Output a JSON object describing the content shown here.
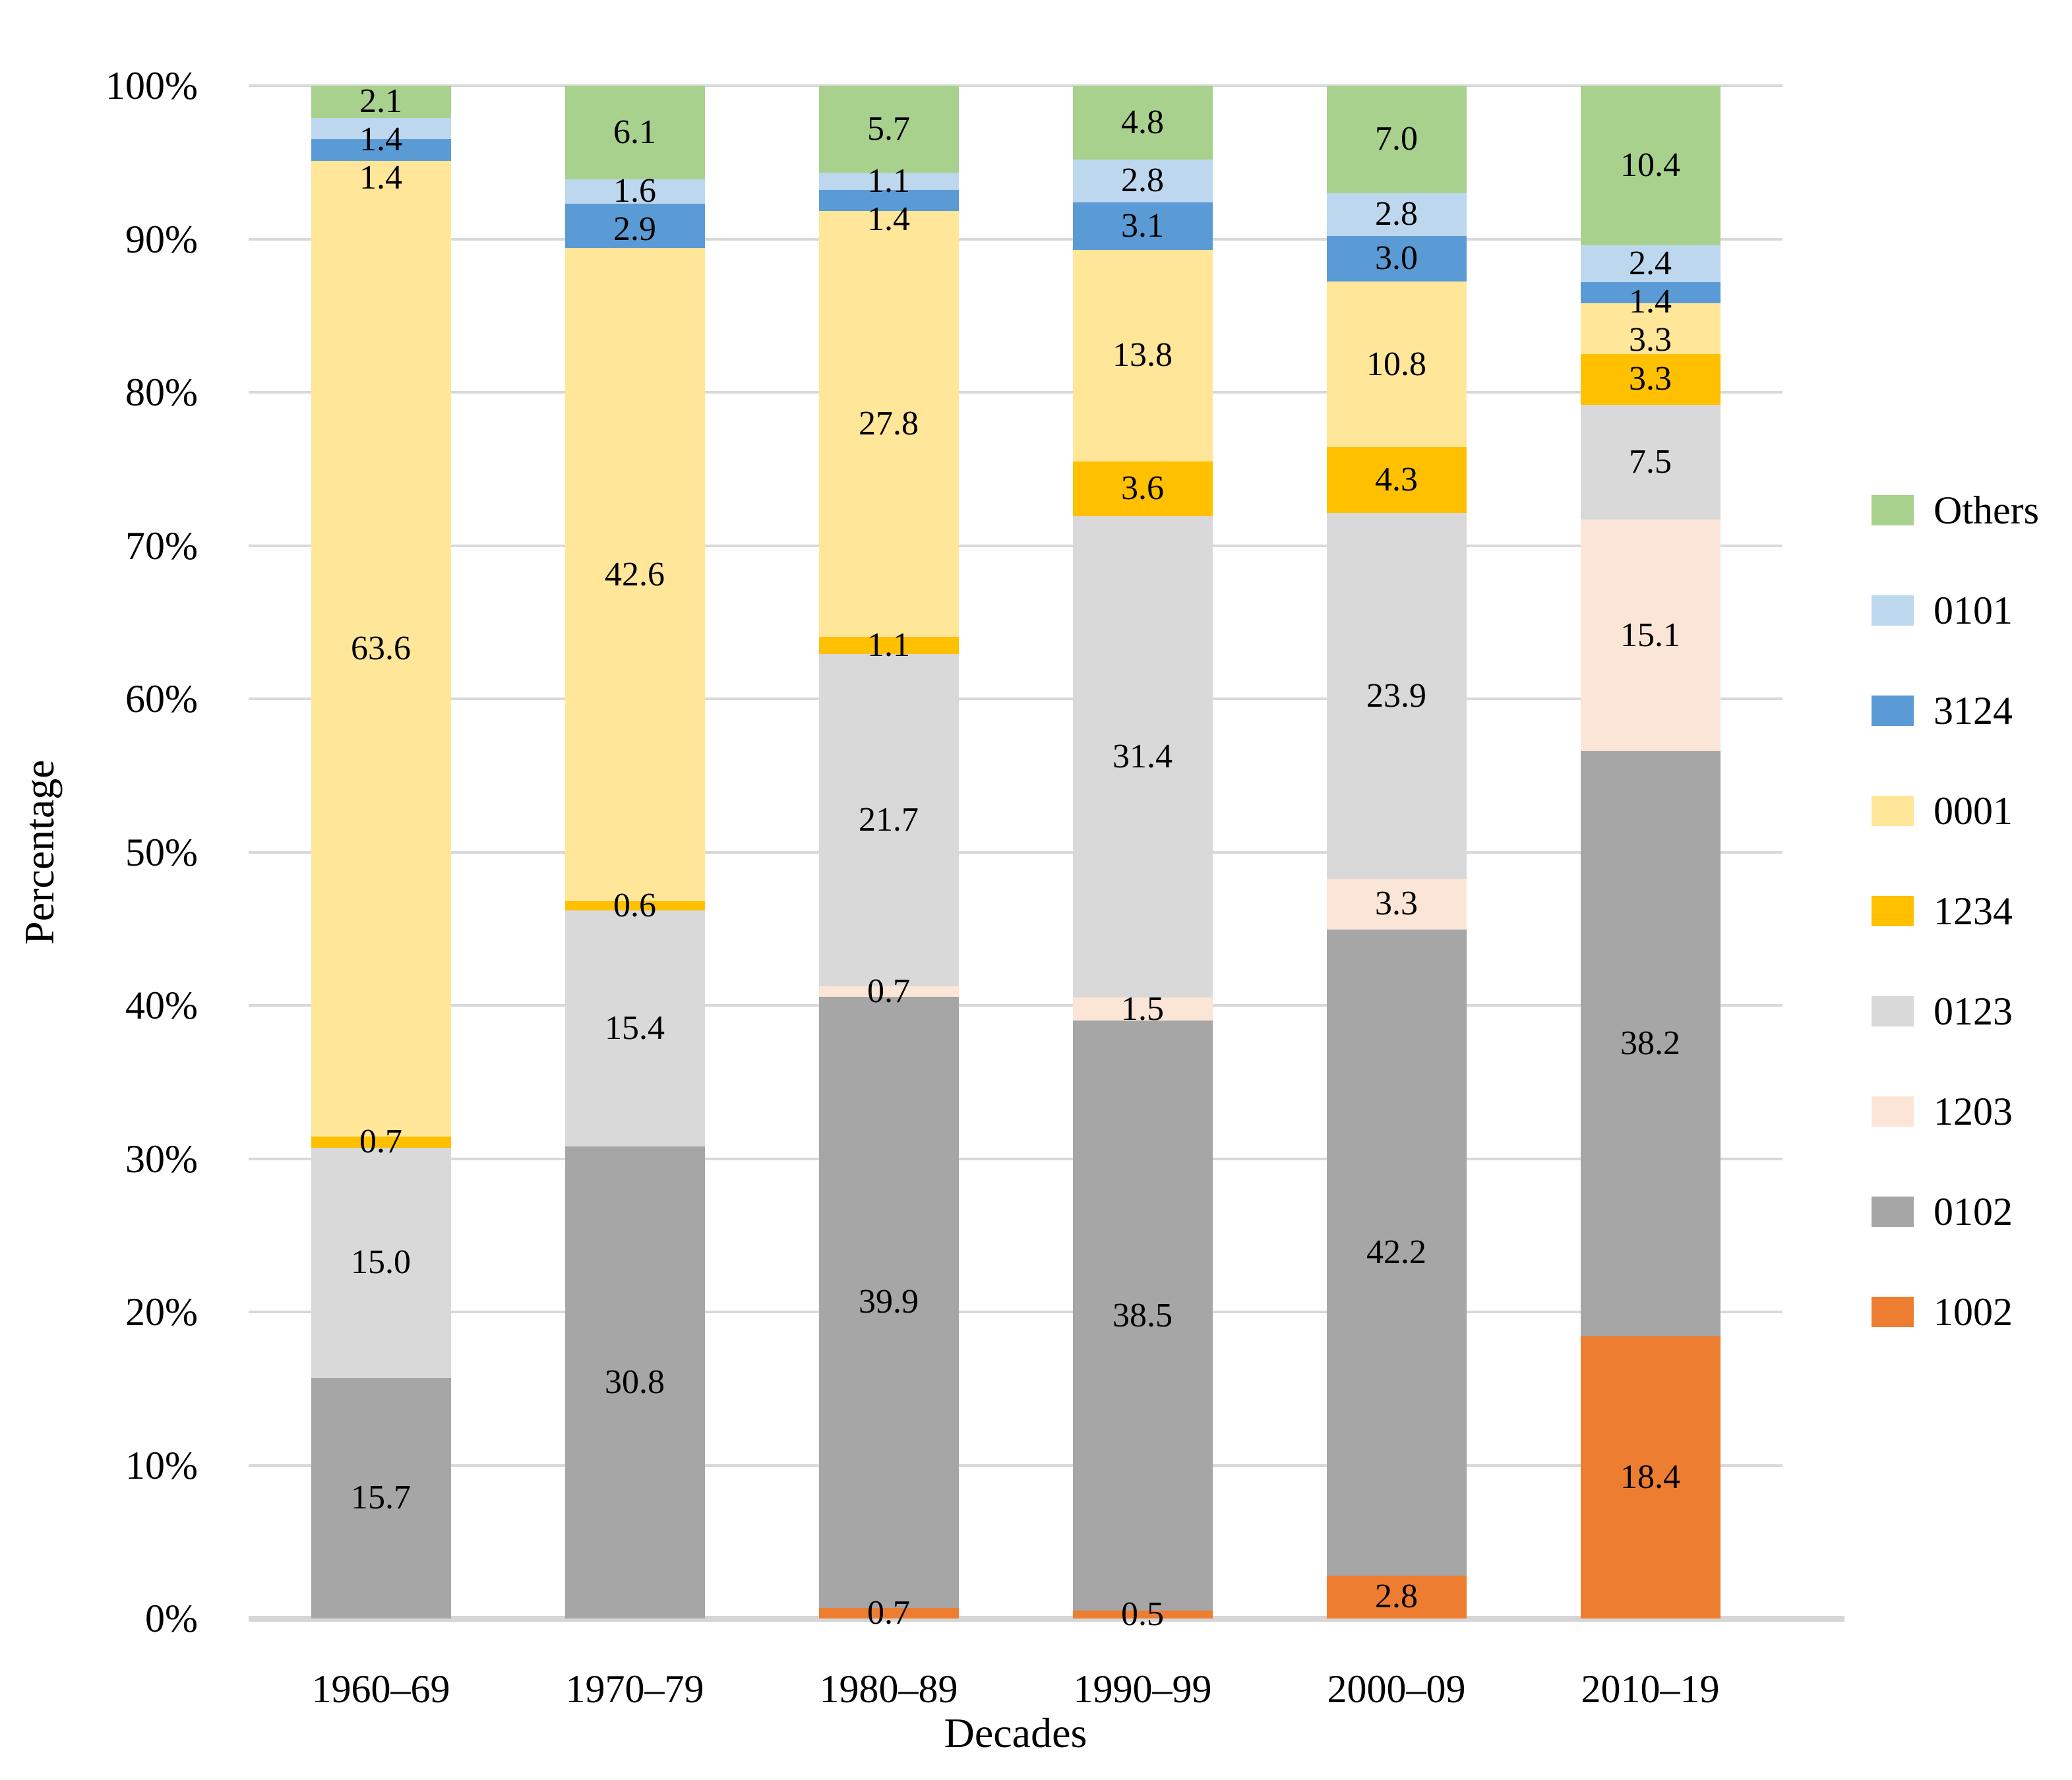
{
  "chart_data": {
    "type": "bar",
    "variant": "stacked-100-percent",
    "title": "",
    "xlabel": "Decades",
    "ylabel": "Percentage",
    "categories": [
      "1960–69",
      "1970–79",
      "1980–89",
      "1990–99",
      "2000–09",
      "2010–19"
    ],
    "y_ticks": [
      "0%",
      "10%",
      "20%",
      "30%",
      "40%",
      "50%",
      "60%",
      "70%",
      "80%",
      "90%",
      "100%"
    ],
    "ylim": [
      0,
      100
    ],
    "grid": "horizontal",
    "grid_color": "#d9d9d9",
    "axis_line_color": "#d6d6d6",
    "label_color": "#000000",
    "series_stack_order_note": "bottom-to-top",
    "series": [
      {
        "name": "1002",
        "color": "#ED7D31",
        "values": [
          0,
          0,
          0.7,
          0.5,
          2.8,
          18.4
        ]
      },
      {
        "name": "0102",
        "color": "#A6A6A6",
        "values": [
          15.7,
          30.8,
          39.9,
          38.5,
          42.2,
          38.2
        ]
      },
      {
        "name": "1203",
        "color": "#FBE5D6",
        "values": [
          0,
          0,
          0.7,
          1.5,
          3.3,
          15.1
        ]
      },
      {
        "name": "0123",
        "color": "#D9D9D9",
        "values": [
          15.0,
          15.4,
          21.7,
          31.4,
          23.9,
          7.5
        ]
      },
      {
        "name": "1234",
        "color": "#FFC000",
        "values": [
          0.7,
          0.6,
          1.1,
          3.6,
          4.3,
          3.3
        ]
      },
      {
        "name": "0001",
        "color": "#FFE699",
        "values": [
          63.6,
          42.6,
          27.8,
          13.8,
          10.8,
          3.3
        ]
      },
      {
        "name": "3124",
        "color": "#5B9BD5",
        "values": [
          1.4,
          2.9,
          1.4,
          3.1,
          3.0,
          1.4
        ]
      },
      {
        "name": "0101",
        "color": "#BDD7EE",
        "values": [
          1.4,
          1.6,
          1.1,
          2.8,
          2.8,
          2.4
        ]
      },
      {
        "name": "Others",
        "color": "#A9D18E",
        "values": [
          2.1,
          6.1,
          5.7,
          4.8,
          7.0,
          10.4
        ]
      }
    ],
    "legend": {
      "position": "right",
      "items": [
        "Others",
        "0101",
        "3124",
        "0001",
        "1234",
        "0123",
        "1203",
        "0102",
        "1002"
      ]
    }
  }
}
